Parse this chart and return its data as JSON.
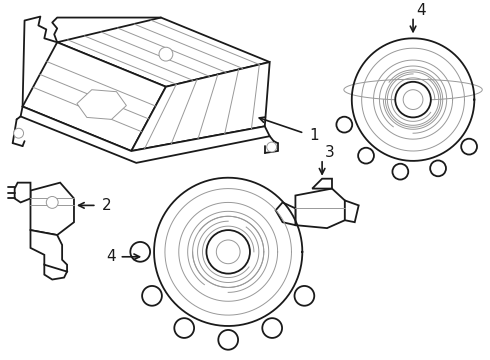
{
  "background_color": "#ffffff",
  "line_color": "#1a1a1a",
  "light_line_color": "#999999",
  "fig_width": 4.9,
  "fig_height": 3.6,
  "dpi": 100
}
